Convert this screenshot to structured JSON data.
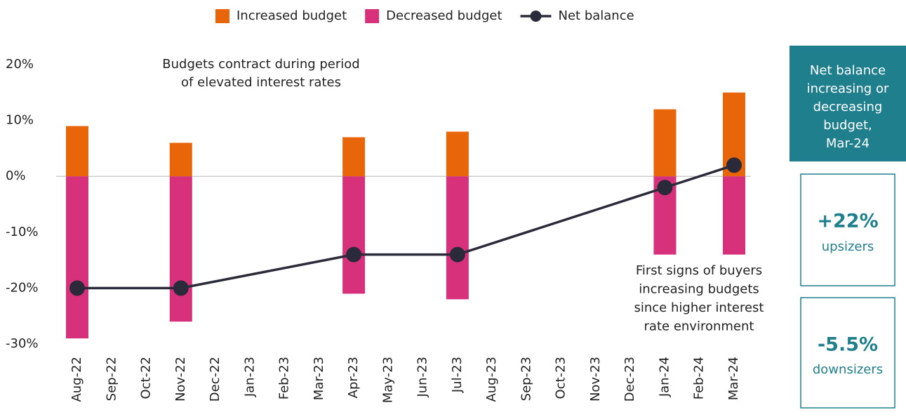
{
  "chart_data": {
    "type": "bar-line",
    "categories": [
      "Aug-22",
      "Sep-22",
      "Oct-22",
      "Nov-22",
      "Dec-22",
      "Jan-23",
      "Feb-23",
      "Mar-23",
      "Apr-23",
      "May-23",
      "Jun-23",
      "Jul-23",
      "Aug-23",
      "Sep-23",
      "Oct-23",
      "Nov-23",
      "Dec-23",
      "Jan-24",
      "Feb-24",
      "Mar-24"
    ],
    "series": [
      {
        "name": "Increased budget",
        "color": "#e8650a",
        "values": [
          9,
          null,
          null,
          6,
          null,
          null,
          null,
          null,
          7,
          null,
          null,
          8,
          null,
          null,
          null,
          null,
          null,
          12,
          null,
          15
        ]
      },
      {
        "name": "Decreased budget",
        "color": "#d6317a",
        "values": [
          -29,
          null,
          null,
          -26,
          null,
          null,
          null,
          null,
          -21,
          null,
          null,
          -22,
          null,
          null,
          null,
          null,
          null,
          -14,
          null,
          -14
        ]
      },
      {
        "name": "Net balance",
        "color": "#2b2a3a",
        "type": "line",
        "x": [
          "Aug-22",
          "Nov-22",
          "Apr-23",
          "Jul-23",
          "Jan-24",
          "Mar-24"
        ],
        "values": [
          -20,
          -20,
          -14,
          -14,
          -2,
          2
        ]
      }
    ],
    "ylim": [
      -30,
      20
    ],
    "yticks": [
      {
        "value": -30,
        "label": "-30%"
      },
      {
        "value": -20,
        "label": "-20%"
      },
      {
        "value": -10,
        "label": "-10%"
      },
      {
        "value": 0,
        "label": "0%"
      },
      {
        "value": 10,
        "label": "10%"
      },
      {
        "value": 20,
        "label": "20%"
      }
    ],
    "legend": "top",
    "annotations": [
      {
        "lines": [
          "Budgets contract during period",
          "of elevated interest rates"
        ]
      },
      {
        "lines": [
          "First signs of buyers",
          "increasing budgets",
          "since higher interest",
          "rate environment"
        ]
      }
    ],
    "panel": {
      "title_lines": [
        "Net balance",
        "increasing or",
        "decreasing",
        "budget,",
        "Mar-24"
      ],
      "stats": [
        {
          "value_label": "+22%",
          "label": "upsizers"
        },
        {
          "value_label": "-5.5%",
          "label": "downsizers"
        }
      ]
    }
  }
}
